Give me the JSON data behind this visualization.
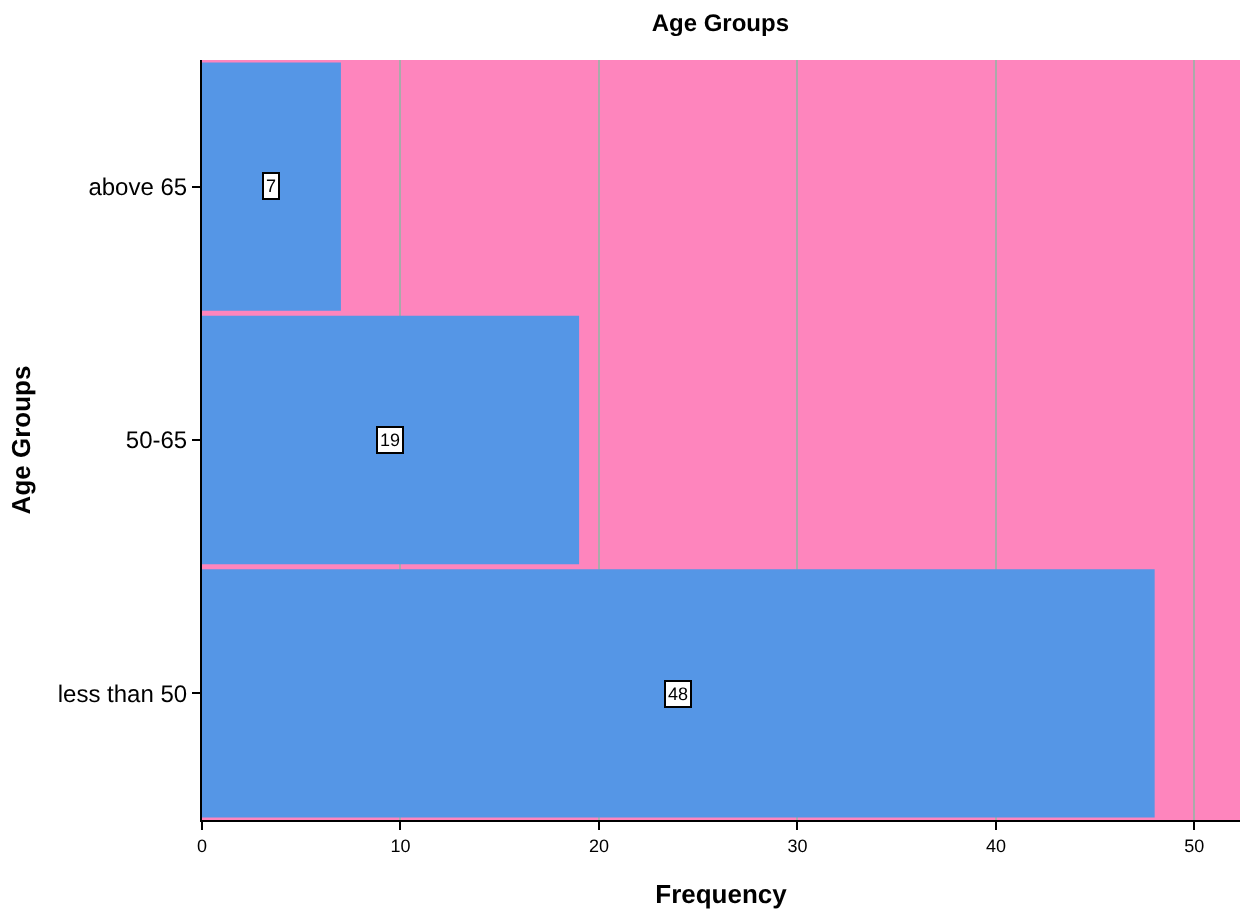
{
  "chart_data": {
    "type": "bar",
    "orientation": "horizontal",
    "title": "Age Groups",
    "xlabel": "Frequency",
    "ylabel": "Age Groups",
    "categories": [
      "above 65",
      "50-65",
      "less than 50"
    ],
    "values": [
      7,
      19,
      48
    ],
    "color": "#5596e6",
    "xlim": [
      0,
      52.3
    ],
    "xticks": [
      0,
      10,
      20,
      30,
      40,
      50
    ],
    "grid": "x",
    "data_labels": true
  }
}
